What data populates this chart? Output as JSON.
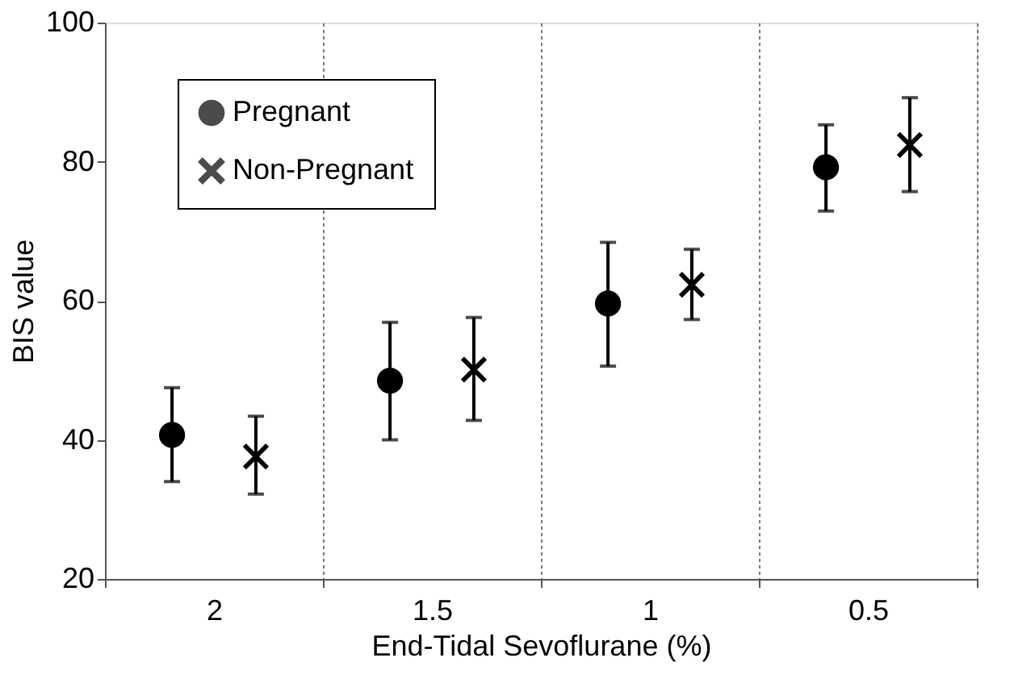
{
  "chart_data": {
    "type": "scatter",
    "xlabel": "End-Tidal Sevoflurane (%)",
    "ylabel": "BIS value",
    "categories": [
      "2",
      "1.5",
      "1",
      "0.5"
    ],
    "series": [
      {
        "name": "Pregnant",
        "color": "#000000",
        "marker": "circle",
        "values": [
          40.7,
          48.5,
          59.6,
          79.2
        ],
        "errors": [
          [
            34.0,
            47.5
          ],
          [
            40.0,
            56.9
          ],
          [
            50.6,
            68.4
          ],
          [
            72.9,
            85.3
          ]
        ]
      },
      {
        "name": "Non-Pregnant",
        "color": "#000000",
        "marker": "cross",
        "values": [
          37.6,
          50.1,
          62.3,
          82.4
        ],
        "errors": [
          [
            32.2,
            43.4
          ],
          [
            42.8,
            57.6
          ],
          [
            57.3,
            67.4
          ],
          [
            75.7,
            89.2
          ]
        ]
      }
    ],
    "ylim": [
      20,
      100
    ],
    "yticks": [
      20,
      40,
      60,
      80,
      100
    ],
    "grid": "x",
    "legend": "top left"
  }
}
